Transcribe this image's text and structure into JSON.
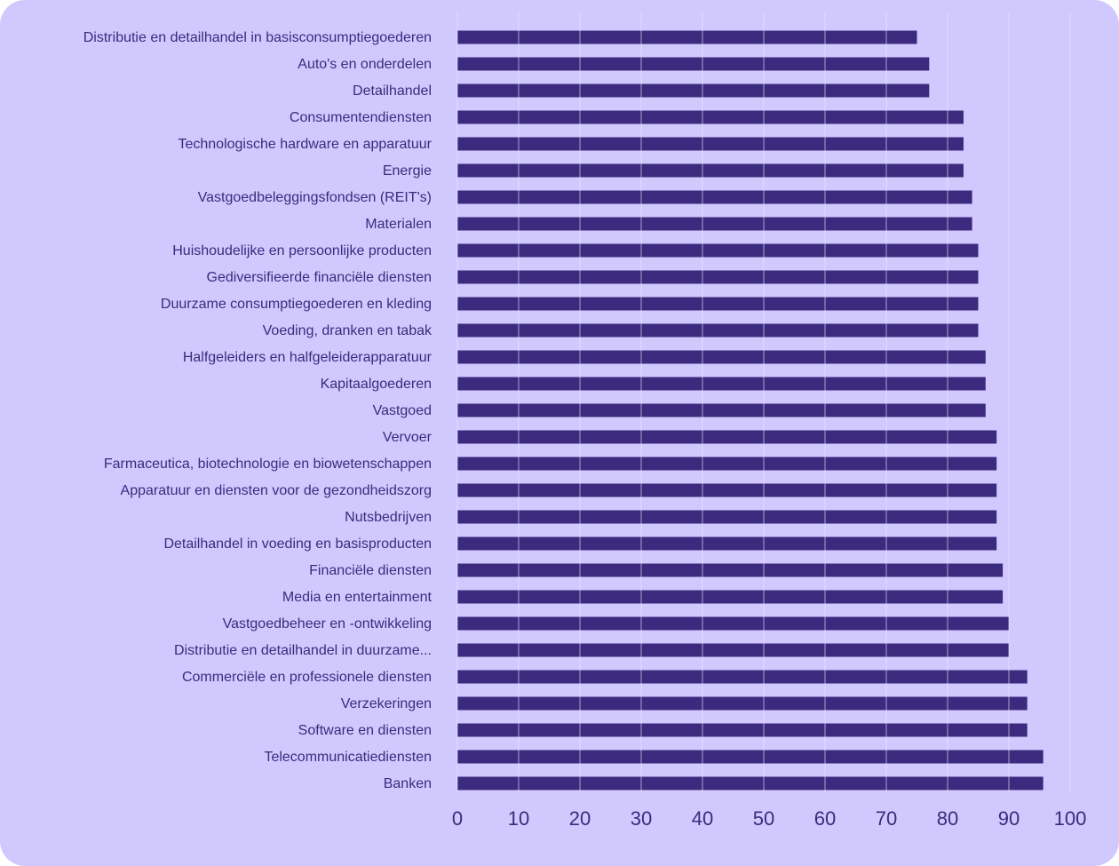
{
  "chart_data": {
    "type": "bar",
    "orientation": "horizontal",
    "categories": [
      "Distributie en detailhandel in basisconsumptiegoederen",
      "Auto's en onderdelen",
      "Detailhandel",
      "Consumentendiensten",
      "Technologische hardware en apparatuur",
      "Energie",
      "Vastgoedbeleggingsfondsen (REIT's)",
      "Materialen",
      "Huishoudelijke en persoonlijke producten",
      "Gediversifieerde financiële diensten",
      "Duurzame consumptiegoederen en kleding",
      "Voeding, dranken en tabak",
      "Halfgeleiders en halfgeleiderapparatuur",
      "Kapitaalgoederen",
      "Vastgoed",
      "Vervoer",
      "Farmaceutica, biotechnologie en biowetenschappen",
      "Apparatuur en diensten voor de gezondheidszorg",
      "Nutsbedrijven",
      "Detailhandel in voeding en basisproducten",
      "Financiële diensten",
      "Media en entertainment",
      "Vastgoedbeheer en -ontwikkeling",
      "Distributie en detailhandel in duurzame...",
      "Commerciële en professionele diensten",
      "Verzekeringen",
      "Software en diensten",
      "Telecommunicatiediensten",
      "Banken"
    ],
    "values": [
      75,
      77,
      77,
      82.6,
      82.6,
      82.6,
      84,
      84,
      85,
      85,
      85,
      85,
      86.2,
      86.2,
      86.2,
      88,
      88,
      88,
      88,
      88,
      89,
      89,
      90,
      90,
      93,
      93,
      93,
      95.6,
      95.6
    ],
    "xlim": [
      0,
      100
    ],
    "xticks": [
      "0",
      "10",
      "20",
      "30",
      "40",
      "50",
      "60",
      "70",
      "80",
      "90",
      "100"
    ],
    "grid": true,
    "colors": {
      "bar": "#3b2a7e",
      "background": "#d1c9fe",
      "grid": "#e6e1ff",
      "text": "#3b2a7e"
    }
  }
}
